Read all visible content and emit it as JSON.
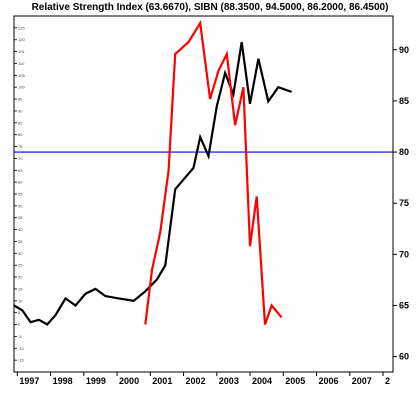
{
  "chart_data": {
    "type": "line",
    "title": "Relative Strength Index (63.6670), SIBN (88.3500, 94.5000, 86.2000, 86.4500)",
    "x_tick_labels": [
      "1997",
      "1998",
      "1999",
      "2000",
      "2001",
      "2002",
      "2003",
      "2004",
      "2005",
      "2006",
      "2007",
      "2"
    ],
    "x_range": [
      1996.9,
      2008.3
    ],
    "right_axis": {
      "ticks": [
        60,
        65,
        70,
        75,
        80,
        85,
        90
      ],
      "range": [
        58.5,
        93.3
      ]
    },
    "left_axis": {
      "ticks": [
        125,
        120,
        115,
        110,
        105,
        100,
        95,
        90,
        85,
        80,
        75,
        70,
        65,
        60,
        55,
        50,
        45,
        40,
        35,
        30,
        25,
        20,
        15,
        10,
        5,
        0,
        -5,
        -10,
        -15
      ],
      "range": [
        -20,
        130
      ]
    },
    "reference_line": {
      "value": 80,
      "axis": "right",
      "color": "#0000cc"
    },
    "series": [
      {
        "axis": "left",
        "color": "#000000",
        "x": [
          1996.9,
          1997.15,
          1997.4,
          1997.65,
          1997.9,
          1998.15,
          1998.45,
          1998.75,
          1999.05,
          1999.35,
          1999.65,
          2000.05,
          2000.5,
          2000.85,
          2001.2,
          2001.45,
          2001.75,
          2002.3,
          2002.5,
          2002.75,
          2003.0,
          2003.25,
          2003.5,
          2003.75,
          2004.0,
          2004.25,
          2004.55,
          2004.85,
          2005.25
        ],
        "y": [
          8,
          6,
          1,
          2,
          0,
          4,
          11,
          8,
          13,
          15,
          12,
          11,
          10,
          14,
          19,
          25,
          57,
          66,
          79,
          71,
          92,
          106,
          97,
          119,
          93,
          112,
          94,
          100,
          98
        ]
      },
      {
        "axis": "left",
        "color": "#ff0000",
        "x": [
          2000.85,
          2001.05,
          2001.3,
          2001.55,
          2001.75,
          2002.15,
          2002.5,
          2002.8,
          2003.05,
          2003.3,
          2003.55,
          2003.8,
          2004.0,
          2004.2,
          2004.45,
          2004.65,
          2004.95
        ],
        "y": [
          0,
          23,
          39,
          65,
          114,
          119,
          127,
          95,
          107,
          114,
          84,
          100,
          33,
          54,
          0,
          8,
          3
        ]
      }
    ]
  }
}
